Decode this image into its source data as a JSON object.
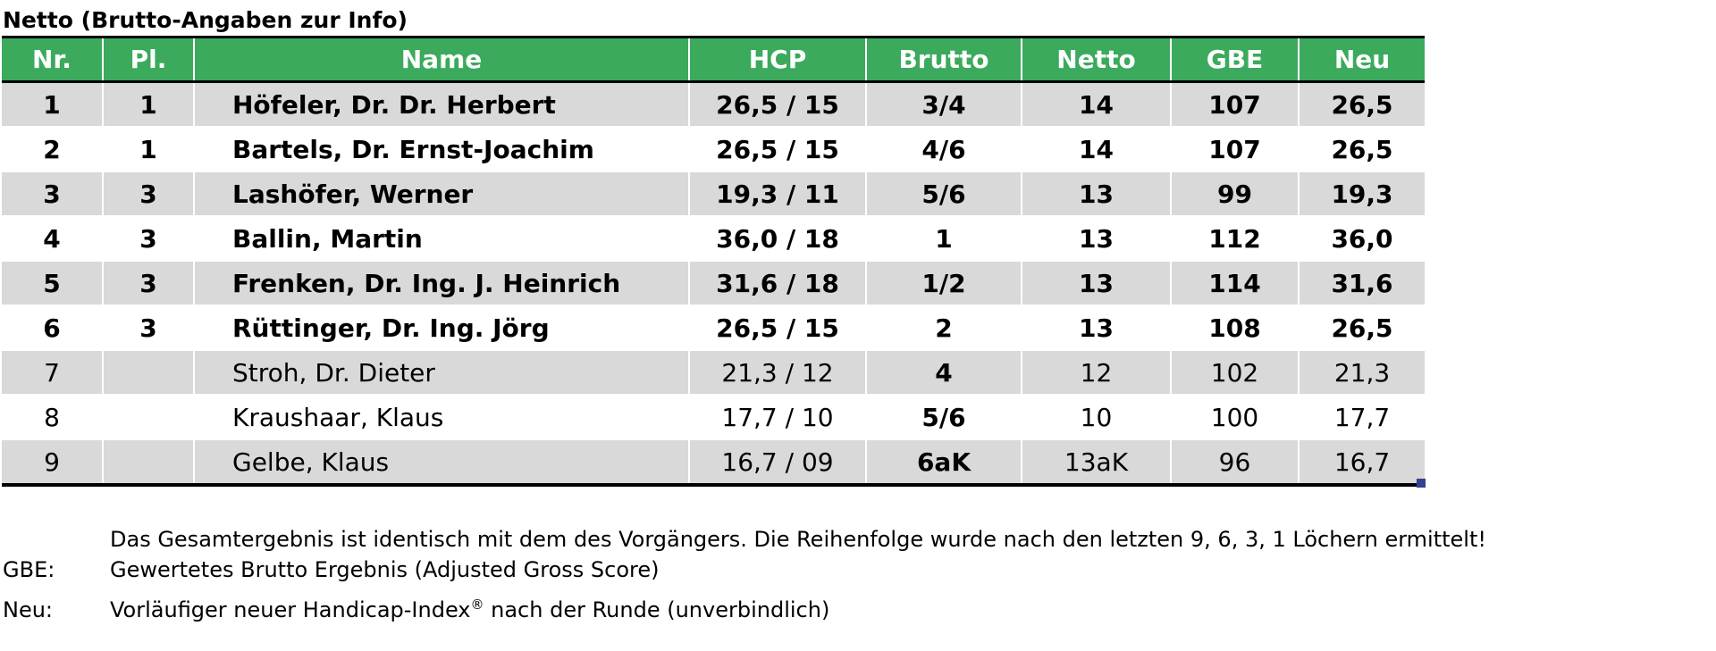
{
  "title": "Netto (Brutto-Angaben zur Info)",
  "colors": {
    "header_green": "#3baa5c",
    "stripe_gray": "#d9d9d9",
    "border_black": "#000000",
    "handle_blue": "#33418f"
  },
  "table": {
    "columns": [
      {
        "key": "nr",
        "label": "Nr."
      },
      {
        "key": "pl",
        "label": "Pl."
      },
      {
        "key": "name",
        "label": "Name"
      },
      {
        "key": "hcp",
        "label": "HCP"
      },
      {
        "key": "brutto",
        "label": "Brutto"
      },
      {
        "key": "netto",
        "label": "Netto"
      },
      {
        "key": "gbe",
        "label": "GBE"
      },
      {
        "key": "neu",
        "label": "Neu"
      }
    ],
    "rows": [
      {
        "nr": "1",
        "pl": "1",
        "name": "Höfeler, Dr. Dr. Herbert",
        "hcp": "26,5 / 15",
        "brutto": "3/4",
        "netto": "14",
        "gbe": "107",
        "neu": "26,5"
      },
      {
        "nr": "2",
        "pl": "1",
        "name": "Bartels, Dr. Ernst-Joachim",
        "hcp": "26,5 / 15",
        "brutto": "4/6",
        "netto": "14",
        "gbe": "107",
        "neu": "26,5"
      },
      {
        "nr": "3",
        "pl": "3",
        "name": "Lashöfer, Werner",
        "hcp": "19,3 / 11",
        "brutto": "5/6",
        "netto": "13",
        "gbe": "99",
        "neu": "19,3"
      },
      {
        "nr": "4",
        "pl": "3",
        "name": "Ballin, Martin",
        "hcp": "36,0 / 18",
        "brutto": "1",
        "netto": "13",
        "gbe": "112",
        "neu": "36,0"
      },
      {
        "nr": "5",
        "pl": "3",
        "name": "Frenken, Dr. Ing. J. Heinrich",
        "hcp": "31,6 / 18",
        "brutto": "1/2",
        "netto": "13",
        "gbe": "114",
        "neu": "31,6"
      },
      {
        "nr": "6",
        "pl": "3",
        "name": "Rüttinger, Dr. Ing. Jörg",
        "hcp": "26,5 / 15",
        "brutto": "2",
        "netto": "13",
        "gbe": "108",
        "neu": "26,5"
      },
      {
        "nr": "7",
        "pl": "",
        "name": "Stroh, Dr. Dieter",
        "hcp": "21,3 / 12",
        "brutto": "4",
        "netto": "12",
        "gbe": "102",
        "neu": "21,3"
      },
      {
        "nr": "8",
        "pl": "",
        "name": "Kraushaar, Klaus",
        "hcp": "17,7 / 10",
        "brutto": "5/6",
        "netto": "10",
        "gbe": "100",
        "neu": "17,7"
      },
      {
        "nr": "9",
        "pl": "",
        "name": "Gelbe, Klaus",
        "hcp": "16,7 / 09",
        "brutto": "6aK",
        "netto": "13aK",
        "gbe": "96",
        "neu": "16,7"
      }
    ]
  },
  "footnotes": {
    "tiebreak": {
      "label": "",
      "text": "Das Gesamtergebnis ist identisch mit dem des Vorgängers. Die Reihenfolge wurde nach den letzten 9, 6, 3, 1 Löchern ermittelt!"
    },
    "gbe": {
      "label": "GBE:",
      "text": "Gewertetes Brutto Ergebnis (Adjusted Gross Score)"
    },
    "neu": {
      "label": "Neu:",
      "text_before": "Vorläufiger neuer Handicap-Index",
      "sup": "®",
      "text_after": " nach der Runde (unverbindlich)"
    }
  }
}
